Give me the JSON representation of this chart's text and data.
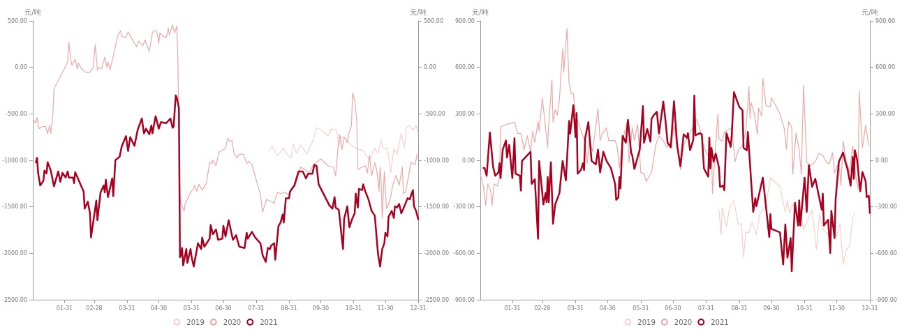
{
  "chart_data": [
    {
      "type": "line",
      "ylabel": "元/吨",
      "y2label": "元/吨",
      "legend": "bottom",
      "marker": "none",
      "line_style": "solid",
      "grid": false,
      "xlim": [
        "--01-01",
        "--12-31"
      ],
      "xticks": [
        {
          "value": "--01-31",
          "label": "01-31"
        },
        {
          "value": "--02-28",
          "label": "02-28"
        },
        {
          "value": "--03-31",
          "label": "03-31"
        },
        {
          "value": "--04-30",
          "label": "04-30"
        },
        {
          "value": "--05-31",
          "label": "05-31"
        },
        {
          "value": "--06-30",
          "label": "06-30"
        },
        {
          "value": "--07-31",
          "label": "07-31"
        },
        {
          "value": "--08-31",
          "label": "08-31"
        },
        {
          "value": "--09-30",
          "label": "09-30"
        },
        {
          "value": "--10-31",
          "label": "10-31"
        },
        {
          "value": "--11-30",
          "label": "11-30"
        },
        {
          "value": "--12-31",
          "label": "12-31"
        }
      ],
      "ylim": [
        -2500,
        500
      ],
      "yticks": [
        {
          "value": -2500,
          "label": "-2500.00"
        },
        {
          "value": -2000,
          "label": "-2000.00"
        },
        {
          "value": -1500,
          "label": "-1500.00"
        },
        {
          "value": -1000,
          "label": "-1000.00"
        },
        {
          "value": -500,
          "label": "-500.00"
        },
        {
          "value": 0,
          "label": "0.00"
        },
        {
          "value": 500,
          "label": "500.00"
        }
      ],
      "y2lim": [
        -2500,
        500
      ],
      "y2ticks": [
        {
          "value": -2500,
          "label": "-2500.00"
        },
        {
          "value": -2000,
          "label": "-2000.00"
        },
        {
          "value": -1500,
          "label": "-1500.00"
        },
        {
          "value": -1000,
          "label": "-1000.00"
        },
        {
          "value": -500,
          "label": "-500.00"
        },
        {
          "value": 0,
          "label": "0.00"
        },
        {
          "value": 500,
          "label": "500.00"
        }
      ],
      "series": [
        {
          "name": "2019",
          "color": "#f5d0cd",
          "x": [
            "--08-12",
            "--08-15",
            "--08-20",
            "--08-26",
            "--08-29",
            "--09-02",
            "--09-04",
            "--09-07",
            "--09-11",
            "--09-17",
            "--09-23",
            "--09-26",
            "--10-02",
            "--10-07",
            "--10-10",
            "--10-15",
            "--10-17",
            "--10-19",
            "--10-23",
            "--10-27",
            "--10-30",
            "--11-03",
            "--11-09",
            "--11-15",
            "--11-20",
            "--11-23",
            "--11-26",
            "--11-28",
            "--12-02",
            "--12-05",
            "--12-08",
            "--12-11",
            "--12-15",
            "--12-18",
            "--12-20",
            "--12-23",
            "--12-26",
            "--12-29",
            "--12-31"
          ],
          "values": [
            -898,
            -848,
            -948,
            -873,
            -935,
            -973,
            -823,
            -923,
            -836,
            -935,
            -773,
            -649,
            -687,
            -736,
            -662,
            -674,
            -848,
            -749,
            -761,
            -811,
            -848,
            -873,
            -898,
            -998,
            -873,
            -923,
            -786,
            -873,
            -873,
            -1135,
            -873,
            -935,
            -711,
            -861,
            -649,
            -625,
            -674,
            -625,
            -711
          ]
        },
        {
          "name": "2020",
          "color": "#eaa9a6",
          "x": [
            "--01-02",
            "--01-04",
            "--01-05",
            "--01-07",
            "--01-10",
            "--01-13",
            "--01-15",
            "--01-17",
            "--01-18",
            "--01-20",
            "--01-21",
            "--01-27",
            "--02-03",
            "--02-04",
            "--02-06",
            "--02-07",
            "--02-10",
            "--02-12",
            "--02-13",
            "--02-16",
            "--02-20",
            "--02-24",
            "--02-27",
            "--03-01",
            "--03-03",
            "--03-05",
            "--03-07",
            "--03-10",
            "--03-12",
            "--03-13",
            "--03-15",
            "--03-18",
            "--03-20",
            "--03-22",
            "--03-25",
            "--03-26",
            "--03-30",
            "--04-01",
            "--04-04",
            "--04-09",
            "--04-11",
            "--04-15",
            "--04-17",
            "--04-21",
            "--04-24",
            "--04-25",
            "--04-28",
            "--04-30",
            "--05-01",
            "--05-04",
            "--05-07",
            "--05-09",
            "--05-10",
            "--05-13",
            "--05-15",
            "--05-17",
            "--05-18",
            "--05-20",
            "--05-21",
            "--05-24",
            "--05-25",
            "--05-27",
            "--05-30",
            "--06-01",
            "--06-03",
            "--06-05",
            "--06-07",
            "--06-10",
            "--06-14",
            "--06-17",
            "--06-19",
            "--06-20",
            "--06-23",
            "--06-26",
            "--07-02",
            "--07-04",
            "--07-06",
            "--07-08",
            "--07-10",
            "--07-13",
            "--07-15",
            "--07-19",
            "--07-22",
            "--07-24",
            "--07-27",
            "--07-30",
            "--08-04",
            "--08-06",
            "--08-10",
            "--08-12",
            "--08-17",
            "--08-20",
            "--08-23",
            "--08-27",
            "--08-30",
            "--09-02",
            "--09-06",
            "--09-11",
            "--09-15",
            "--09-19",
            "--09-23",
            "--09-30",
            "--10-07",
            "--10-12",
            "--10-14",
            "--10-16",
            "--10-18",
            "--10-20",
            "--10-22",
            "--10-25",
            "--10-26",
            "--10-29",
            "--10-30",
            "--11-01",
            "--11-03",
            "--11-04",
            "--11-08",
            "--11-11",
            "--11-13",
            "--11-15",
            "--11-17",
            "--11-20",
            "--11-22",
            "--11-24",
            "--11-25",
            "--11-26",
            "--11-27",
            "--11-29",
            "--12-01",
            "--12-04",
            "--12-07",
            "--12-10",
            "--12-13",
            "--12-16",
            "--12-17",
            "--12-19",
            "--12-23",
            "--12-24",
            "--12-28",
            "--12-30",
            "--12-31"
          ],
          "values": [
            -570,
            -600,
            -537,
            -660,
            -637,
            -637,
            -710,
            -625,
            -710,
            -500,
            -227,
            -102,
            60,
            271,
            72,
            22,
            85,
            -15,
            47,
            -15,
            -52,
            -52,
            -2,
            246,
            -27,
            -2,
            -15,
            110,
            -2,
            60,
            -27,
            122,
            221,
            333,
            395,
            333,
            321,
            383,
            321,
            221,
            283,
            234,
            296,
            172,
            371,
            395,
            395,
            259,
            371,
            333,
            321,
            420,
            346,
            458,
            371,
            445,
            97,
            -1408,
            -1470,
            -1545,
            -1458,
            -1420,
            -1345,
            -1320,
            -1270,
            -1333,
            -1258,
            -1320,
            -1245,
            -1023,
            -1035,
            -998,
            -1060,
            -910,
            -873,
            -760,
            -798,
            -786,
            -923,
            -973,
            -935,
            -935,
            -1035,
            -1010,
            -1048,
            -1170,
            -1370,
            -1557,
            -1420,
            -1433,
            -1458,
            -1345,
            -1358,
            -1345,
            -1370,
            -1320,
            -1270,
            -1073,
            -1098,
            -1135,
            -1048,
            -985,
            -1060,
            -1073,
            -1170,
            -898,
            -724,
            -885,
            -749,
            -811,
            -724,
            -625,
            -276,
            -351,
            -575,
            -1098,
            -1073,
            -1060,
            -1135,
            -948,
            -1170,
            -1023,
            -1120,
            -1333,
            -1073,
            -1220,
            -1620,
            -1120,
            -1520,
            -1445,
            -1270,
            -1160,
            -1270,
            -1073,
            -1358,
            -1345,
            -1098,
            -1023,
            -1048,
            -935,
            -948
          ]
        },
        {
          "name": "2021",
          "color": "#a8001e",
          "x": [
            "--01-04",
            "--01-05",
            "--01-06",
            "--01-08",
            "--01-11",
            "--01-12",
            "--01-14",
            "--01-15",
            "--01-18",
            "--01-21",
            "--01-25",
            "--01-27",
            "--01-29",
            "--02-01",
            "--02-03",
            "--02-04",
            "--02-08",
            "--02-09",
            "--02-10",
            "--02-18",
            "--02-19",
            "--02-22",
            "--02-24",
            "--02-25",
            "--03-02",
            "--03-03",
            "--03-06",
            "--03-09",
            "--03-10",
            "--03-11",
            "--03-13",
            "--03-17",
            "--03-18",
            "--03-20",
            "--03-24",
            "--03-26",
            "--03-30",
            "--04-01",
            "--04-03",
            "--04-07",
            "--04-10",
            "--04-14",
            "--04-16",
            "--04-18",
            "--04-21",
            "--04-23",
            "--04-24",
            "--04-27",
            "--04-30",
            "--05-02",
            "--05-07",
            "--05-11",
            "--05-13",
            "--05-14",
            "--05-16",
            "--05-17",
            "--05-19",
            "--05-20",
            "--05-21",
            "--05-22",
            "--05-23",
            "--05-26",
            "--05-27",
            "--05-30",
            "--05-31",
            "--06-02",
            "--06-06",
            "--06-09",
            "--06-10",
            "--06-12",
            "--06-17",
            "--06-18",
            "--06-20",
            "--06-23",
            "--06-25",
            "--06-29",
            "--06-30",
            "--07-02",
            "--07-05",
            "--07-09",
            "--07-12",
            "--07-15",
            "--07-20",
            "--07-22",
            "--07-23",
            "--07-27",
            "--07-30",
            "--08-04",
            "--08-06",
            "--08-09",
            "--08-11",
            "--08-13",
            "--08-14",
            "--08-17",
            "--08-18",
            "--08-21",
            "--08-23",
            "--08-25",
            "--08-26",
            "--08-28",
            "--08-31",
            "--09-01",
            "--09-05",
            "--09-09",
            "--09-13",
            "--09-16",
            "--09-18",
            "--09-22",
            "--09-24",
            "--09-26",
            "--09-28",
            "--10-03",
            "--10-08",
            "--10-11",
            "--10-13",
            "--10-14",
            "--10-17",
            "--10-21",
            "--10-22",
            "--10-25",
            "--10-27",
            "--10-30",
            "--11-01",
            "--11-02",
            "--11-04",
            "--11-05",
            "--11-08",
            "--11-09",
            "--11-11",
            "--11-14",
            "--11-17",
            "--11-20",
            "--11-23",
            "--11-25",
            "--11-27",
            "--11-29",
            "--11-30",
            "--12-02",
            "--12-03",
            "--12-06",
            "--12-08",
            "--12-09",
            "--12-11",
            "--12-13",
            "--12-15",
            "--12-17",
            "--12-21",
            "--12-23",
            "--12-26",
            "--12-27",
            "--12-29",
            "--12-31"
          ],
          "values": [
            -1023,
            -973,
            -1135,
            -1270,
            -1220,
            -1110,
            -1140,
            -1020,
            -1110,
            -1280,
            -1120,
            -1230,
            -1135,
            -1185,
            -1120,
            -1185,
            -1185,
            -1245,
            -1127,
            -1335,
            -1520,
            -1445,
            -1570,
            -1830,
            -1433,
            -1645,
            -1345,
            -1270,
            -1345,
            -1210,
            -1395,
            -1195,
            -1385,
            -998,
            -960,
            -850,
            -740,
            -900,
            -750,
            -845,
            -675,
            -550,
            -710,
            -660,
            -720,
            -625,
            -710,
            -525,
            -660,
            -590,
            -600,
            -550,
            -650,
            -637,
            -300,
            -325,
            -440,
            -2043,
            -2018,
            -1943,
            -2130,
            -1955,
            -2105,
            -1955,
            -2043,
            -2142,
            -1893,
            -1955,
            -1830,
            -1930,
            -1843,
            -1695,
            -1795,
            -1745,
            -1855,
            -1843,
            -1705,
            -1820,
            -1645,
            -1855,
            -1805,
            -1930,
            -1943,
            -1780,
            -1843,
            -1770,
            -1830,
            -1893,
            -2018,
            -2093,
            -1943,
            -1955,
            -1918,
            -1893,
            -2068,
            -1707,
            -1670,
            -1583,
            -1670,
            -1408,
            -1408,
            -1335,
            -1270,
            -1120,
            -1120,
            -1195,
            -1145,
            -1145,
            -1048,
            -1060,
            -1260,
            -1370,
            -1483,
            -1520,
            -1395,
            -1508,
            -1533,
            -1955,
            -1633,
            -1495,
            -1720,
            -1620,
            -1570,
            -1358,
            -1508,
            -1308,
            -1320,
            -1258,
            -1333,
            -1420,
            -1545,
            -1595,
            -2005,
            -2142,
            -1955,
            -1893,
            -1780,
            -1818,
            -1607,
            -1545,
            -1620,
            -1495,
            -1508,
            -1470,
            -1570,
            -1520,
            -1408,
            -1420,
            -1320,
            -1495,
            -1545,
            -1633
          ]
        }
      ]
    },
    {
      "type": "line",
      "ylabel": "元/吨",
      "y2label": "元/吨",
      "legend": "bottom",
      "marker": "none",
      "line_style": "solid",
      "grid": false,
      "xlim": [
        "--01-01",
        "--12-31"
      ],
      "xticks": [
        {
          "value": "--01-31",
          "label": "01-31"
        },
        {
          "value": "--02-28",
          "label": "02-28"
        },
        {
          "value": "--03-31",
          "label": "03-31"
        },
        {
          "value": "--04-30",
          "label": "04-30"
        },
        {
          "value": "--05-31",
          "label": "05-31"
        },
        {
          "value": "--06-30",
          "label": "06-30"
        },
        {
          "value": "--07-31",
          "label": "07-31"
        },
        {
          "value": "--08-31",
          "label": "08-31"
        },
        {
          "value": "--09-30",
          "label": "09-30"
        },
        {
          "value": "--10-31",
          "label": "10-31"
        },
        {
          "value": "--11-30",
          "label": "11-30"
        },
        {
          "value": "--12-31",
          "label": "12-31"
        }
      ],
      "ylim": [
        -900,
        900
      ],
      "yticks": [
        {
          "value": -900,
          "label": "-900.00"
        },
        {
          "value": -600,
          "label": "-600.00"
        },
        {
          "value": -300,
          "label": "-300.00"
        },
        {
          "value": 0,
          "label": "0.00"
        },
        {
          "value": 300,
          "label": "300.00"
        },
        {
          "value": 600,
          "label": "600.00"
        },
        {
          "value": 900,
          "label": "900.00"
        }
      ],
      "y2lim": [
        -900,
        900
      ],
      "y2ticks": [
        {
          "value": -900,
          "label": "-900.00"
        },
        {
          "value": -600,
          "label": "-600.00"
        },
        {
          "value": -300,
          "label": "-300.00"
        },
        {
          "value": 0,
          "label": "0.00"
        },
        {
          "value": 300,
          "label": "300.00"
        },
        {
          "value": 600,
          "label": "600.00"
        },
        {
          "value": 900,
          "label": "900.00"
        }
      ],
      "series": [
        {
          "name": "2019",
          "color": "#f5d0cd",
          "x": [
            "--08-12",
            "--08-14",
            "--08-15",
            "--08-19",
            "--08-22",
            "--08-26",
            "--08-30",
            "--09-02",
            "--09-04",
            "--09-06",
            "--09-09",
            "--09-12",
            "--09-16",
            "--09-19",
            "--09-25",
            "--09-29",
            "--10-08",
            "--10-11",
            "--10-13",
            "--10-15",
            "--10-17",
            "--10-20",
            "--10-24",
            "--10-27",
            "--10-30",
            "--11-03",
            "--11-07",
            "--11-11",
            "--11-14",
            "--11-17",
            "--11-22",
            "--11-26",
            "--11-30",
            "--12-03",
            "--12-06",
            "--12-09",
            "--12-12",
            "--12-15",
            "--12-17"
          ],
          "values": [
            -318,
            -480,
            -303,
            -429,
            -303,
            -259,
            -414,
            -407,
            -628,
            -465,
            -465,
            -399,
            -480,
            -348,
            -289,
            -112,
            -171,
            -274,
            -333,
            -259,
            -340,
            -281,
            -348,
            -318,
            -451,
            -384,
            -318,
            -576,
            -348,
            -443,
            -480,
            -407,
            -495,
            -407,
            -672,
            -576,
            -554,
            -370,
            -340
          ]
        },
        {
          "name": "2020",
          "color": "#eaa9a6",
          "x": [
            "--01-01",
            "--01-04",
            "--01-06",
            "--01-08",
            "--01-11",
            "--01-12",
            "--01-14",
            "--01-17",
            "--01-19",
            "--01-20",
            "--01-26",
            "--02-02",
            "--02-05",
            "--02-08",
            "--02-11",
            "--02-14",
            "--02-17",
            "--02-19",
            "--02-21",
            "--02-24",
            "--02-25",
            "--02-28",
            "--03-02",
            "--03-04",
            "--03-05",
            "--03-06",
            "--03-09",
            "--03-10",
            "--03-12",
            "--03-14",
            "--03-16",
            "--03-19",
            "--03-20",
            "--03-23",
            "--03-25",
            "--03-27",
            "--03-29",
            "--03-31",
            "--04-05",
            "--04-09",
            "--04-11",
            "--04-13",
            "--04-16",
            "--04-21",
            "--04-23",
            "--04-25",
            "--04-29",
            "--05-01",
            "--05-07",
            "--05-09",
            "--05-11",
            "--05-14",
            "--05-18",
            "--05-20",
            "--05-23",
            "--05-25",
            "--05-28",
            "--05-31",
            "--06-03",
            "--06-05",
            "--06-10",
            "--06-14",
            "--06-17",
            "--06-21",
            "--06-24",
            "--06-29",
            "--07-01",
            "--07-04",
            "--07-07",
            "--07-10",
            "--07-14",
            "--07-18",
            "--07-22",
            "--07-25",
            "--07-28",
            "--08-01",
            "--08-05",
            "--08-06",
            "--08-08",
            "--08-11",
            "--08-12",
            "--08-15",
            "--08-17",
            "--08-21",
            "--08-24",
            "--08-27",
            "--08-30",
            "--09-03",
            "--09-06",
            "--09-09",
            "--09-10",
            "--09-11",
            "--09-14",
            "--09-17",
            "--09-18",
            "--09-21",
            "--09-22",
            "--09-25",
            "--09-29",
            "--09-30",
            "--10-03",
            "--10-08",
            "--10-12",
            "--10-14",
            "--10-16",
            "--10-19",
            "--10-20",
            "--10-23",
            "--10-26",
            "--10-28",
            "--10-30",
            "--11-02",
            "--11-05",
            "--11-10",
            "--11-13",
            "--11-17",
            "--11-20",
            "--11-23",
            "--11-26",
            "--11-28",
            "--12-02",
            "--12-04",
            "--12-06",
            "--12-09",
            "--12-12",
            "--12-15",
            "--12-18",
            "--12-20",
            "--12-21",
            "--12-24",
            "--12-27",
            "--12-30"
          ],
          "values": [
            -86,
            -167,
            -292,
            -152,
            -204,
            -292,
            -152,
            -167,
            -108,
            216,
            232,
            246,
            173,
            173,
            69,
            158,
            55,
            187,
            114,
            254,
            187,
            401,
            276,
            143,
            84,
            232,
            519,
            246,
            328,
            291,
            394,
            719,
            571,
            851,
            497,
            431,
            431,
            298,
            195,
            114,
            -19,
            143,
            55,
            335,
            128,
            173,
            210,
            128,
            128,
            84,
            -49,
            128,
            246,
            -12,
            210,
            128,
            232,
            -78,
            -86,
            -137,
            -78,
            99,
            158,
            128,
            84,
            128,
            227,
            80,
            -60,
            94,
            153,
            205,
            264,
            212,
            109,
            35,
            65,
            -215,
            6,
            300,
            138,
            124,
            183,
            197,
            212,
            -9,
            65,
            94,
            183,
            477,
            271,
            374,
            300,
            168,
            337,
            286,
            529,
            352,
            345,
            404,
            367,
            300,
            205,
            72,
            249,
            212,
            -90,
            175,
            65,
            -90,
            485,
            -9,
            -38,
            -9,
            43,
            35,
            -9,
            -24,
            50,
            -82,
            -9,
            -164,
            124,
            -9,
            -75,
            94,
            -112,
            -186,
            448,
            80,
            227,
            94
          ]
        },
        {
          "name": "2021",
          "color": "#a8001e",
          "x": [
            "--01-04",
            "--01-05",
            "--01-07",
            "--01-10",
            "--01-13",
            "--01-14",
            "--01-15",
            "--01-18",
            "--01-19",
            "--01-20",
            "--01-22",
            "--01-25",
            "--01-26",
            "--01-28",
            "--01-31",
            "--02-02",
            "--02-03",
            "--02-07",
            "--02-08",
            "--02-09",
            "--02-17",
            "--02-18",
            "--02-21",
            "--02-24",
            "--02-25",
            "--03-01",
            "--03-03",
            "--03-04",
            "--03-05",
            "--03-06",
            "--03-08",
            "--03-10",
            "--03-12",
            "--03-16",
            "--03-17",
            "--03-19",
            "--03-22",
            "--03-25",
            "--03-26",
            "--03-29",
            "--03-31",
            "--04-01",
            "--04-02",
            "--04-05",
            "--04-07",
            "--04-08",
            "--04-09",
            "--04-12",
            "--04-15",
            "--04-19",
            "--04-21",
            "--04-23",
            "--04-26",
            "--04-29",
            "--05-03",
            "--05-07",
            "--05-08",
            "--05-10",
            "--05-11",
            "--05-12",
            "--05-14",
            "--05-17",
            "--05-19",
            "--05-22",
            "--05-23",
            "--05-25",
            "--05-30",
            "--06-02",
            "--06-03",
            "--06-06",
            "--06-09",
            "--06-10",
            "--06-12",
            "--06-15",
            "--06-17",
            "--06-21",
            "--06-23",
            "--06-25",
            "--06-28",
            "--07-01",
            "--07-04",
            "--07-07",
            "--07-10",
            "--07-13",
            "--07-14",
            "--07-16",
            "--07-19",
            "--07-20",
            "--07-21",
            "--07-25",
            "--07-27",
            "--07-29",
            "--08-02",
            "--08-03",
            "--08-04",
            "--08-05",
            "--08-07",
            "--08-09",
            "--08-12",
            "--08-13",
            "--08-16",
            "--08-17",
            "--08-19",
            "--08-23",
            "--08-24",
            "--08-26",
            "--08-31",
            "--09-03",
            "--09-04",
            "--09-07",
            "--09-08",
            "--09-13",
            "--09-15",
            "--09-16",
            "--09-22",
            "--09-28",
            "--09-29",
            "--09-30",
            "--10-08",
            "--10-11",
            "--10-13",
            "--10-15",
            "--10-18",
            "--10-19",
            "--10-22",
            "--10-25",
            "--10-26",
            "--10-27",
            "--10-31",
            "--11-02",
            "--11-04",
            "--11-07",
            "--11-10",
            "--11-16",
            "--11-17",
            "--11-18",
            "--11-22",
            "--11-24",
            "--11-25",
            "--11-28",
            "--11-29",
            "--12-02",
            "--12-06",
            "--12-08",
            "--12-10",
            "--12-13",
            "--12-15",
            "--12-16",
            "--12-17",
            "--12-19",
            "--12-22",
            "--12-24",
            "--12-27",
            "--12-28",
            "--12-30",
            "--12-31"
          ],
          "values": [
            -49,
            -49,
            -100,
            180,
            -41,
            -71,
            -100,
            -78,
            -19,
            -115,
            69,
            128,
            18,
            99,
            -115,
            143,
            -86,
            -100,
            -196,
            -4,
            55,
            -152,
            -122,
            -506,
            -4,
            -285,
            -211,
            -270,
            -108,
            -270,
            -12,
            -410,
            -285,
            -211,
            -137,
            -4,
            -130,
            254,
            173,
            357,
            150,
            305,
            -86,
            -63,
            -19,
            -63,
            143,
            246,
            -4,
            -26,
            69,
            -78,
            55,
            -4,
            -49,
            -152,
            -255,
            -240,
            -108,
            -181,
            158,
            114,
            261,
            47,
            32,
            -56,
            69,
            350,
            114,
            202,
            121,
            268,
            291,
            313,
            173,
            379,
            261,
            114,
            84,
            381,
            94,
            -38,
            168,
            146,
            175,
            65,
            131,
            418,
            161,
            175,
            168,
            -53,
            -105,
            146,
            -53,
            80,
            -9,
            43,
            -46,
            -171,
            -164,
            -193,
            175,
            87,
            168,
            440,
            345,
            323,
            80,
            65,
            183,
            -333,
            -245,
            -296,
            -112,
            -495,
            -348,
            -443,
            -465,
            -672,
            -414,
            -628,
            -502,
            -716,
            -274,
            -421,
            -259,
            -421,
            -112,
            -333,
            -31,
            -171,
            -119,
            -318,
            -215,
            -421,
            -384,
            -598,
            -326,
            -502,
            -252,
            -9,
            50,
            -9,
            -53,
            -164,
            21,
            -119,
            65,
            6,
            -200,
            -75,
            -134,
            -237,
            -230,
            -340
          ]
        }
      ]
    }
  ]
}
